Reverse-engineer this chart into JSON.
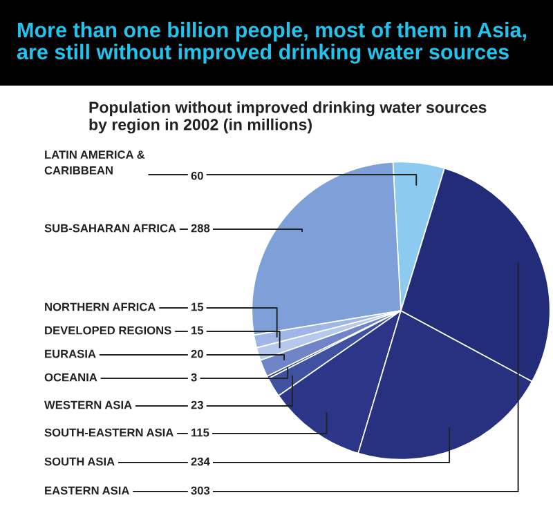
{
  "chart_data": {
    "type": "pie",
    "title": "More than one billion people, most of them in Asia,\nare still without improved drinking water sources",
    "subtitle": "Population without improved drinking water sources\nby region in 2002 (in millions)",
    "categories": [
      "LATIN AMERICA &\nCARIBBEAN",
      "SUB-SAHARAN AFRICA",
      "NORTHERN AFRICA",
      "DEVELOPED REGIONS",
      "EURASIA",
      "OCEANIA",
      "WESTERN ASIA",
      "SOUTH-EASTERN ASIA",
      "SOUTH ASIA",
      "EASTERN ASIA"
    ],
    "values": [
      60,
      288,
      15,
      15,
      20,
      3,
      23,
      115,
      234,
      303
    ],
    "colors": [
      "#8ccaf0",
      "#7f9fd8",
      "#9fb6e6",
      "#b6c8ec",
      "#7085c8",
      "#33438f",
      "#3f51a0",
      "#2c3688",
      "#27317f",
      "#222c78"
    ],
    "data_labels": true
  }
}
